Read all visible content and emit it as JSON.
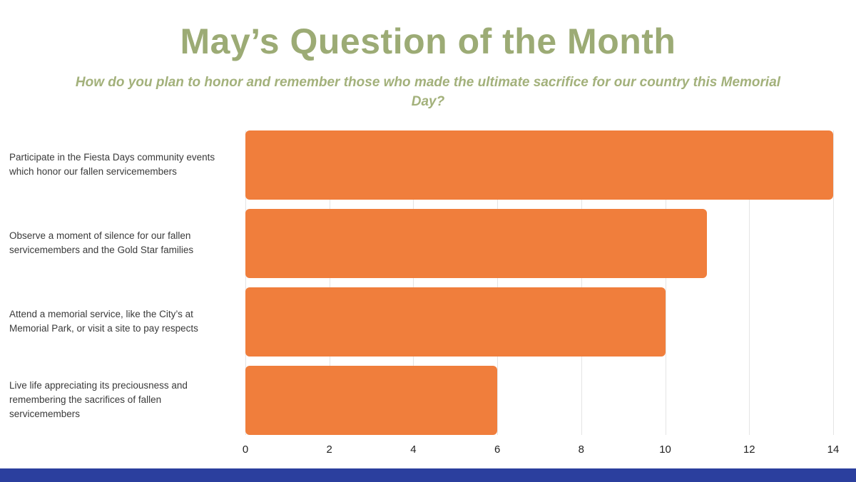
{
  "header": {
    "title": "May’s Question of the Month",
    "subtitle": "How do you plan to honor and remember those who made the ultimate sacrifice for our country this Memorial Day?"
  },
  "chart_data": {
    "type": "bar",
    "orientation": "horizontal",
    "title": "May’s Question of the Month",
    "subtitle": "How do you plan to honor and remember those who made the ultimate sacrifice for our country this Memorial Day?",
    "categories": [
      "Participate in the Fiesta Days community events which honor our fallen servicemembers",
      "Observe a moment of silence for our fallen servicemembers and the Gold Star families",
      "Attend a memorial service, like the City’s at Memorial Park, or visit a site to pay respects",
      "Live life appreciating its preciousness and remembering the sacrifices of fallen servicemembers"
    ],
    "values": [
      14,
      11,
      10,
      6
    ],
    "xlim": [
      0,
      14
    ],
    "x_ticks": [
      0,
      2,
      4,
      6,
      8,
      10,
      12,
      14
    ],
    "xlabel": "",
    "ylabel": "",
    "grid": true,
    "legend": false,
    "bar_color": "#f07e3c"
  },
  "colors": {
    "title_green": "#9cab75",
    "subtitle_green": "#a3b17b",
    "bar_orange": "#f07e3c",
    "gridline_gray": "#e4e4e4",
    "footer_blue": "#2b3f9e"
  }
}
